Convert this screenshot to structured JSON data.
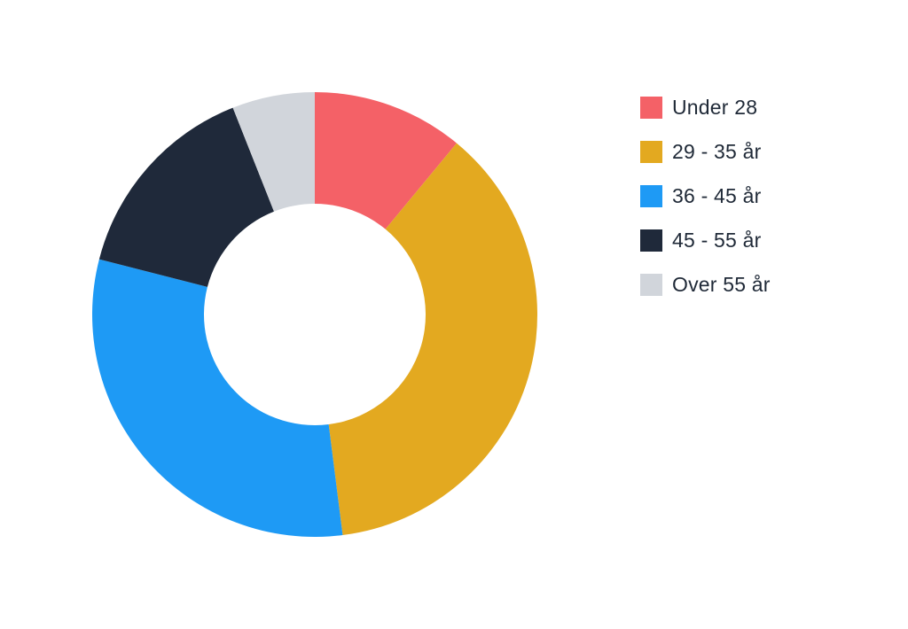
{
  "chart_data": {
    "type": "pie",
    "donut": true,
    "legend_position": "right",
    "categories": [
      "Under 28",
      "29 - 35 år",
      "36 - 45 år",
      "45 - 55 år",
      "Over 55 år"
    ],
    "values": [
      11,
      37,
      31,
      15,
      6
    ],
    "colors": [
      "#f46167",
      "#e3a920",
      "#1e9af5",
      "#1f293a",
      "#d1d5db"
    ]
  }
}
